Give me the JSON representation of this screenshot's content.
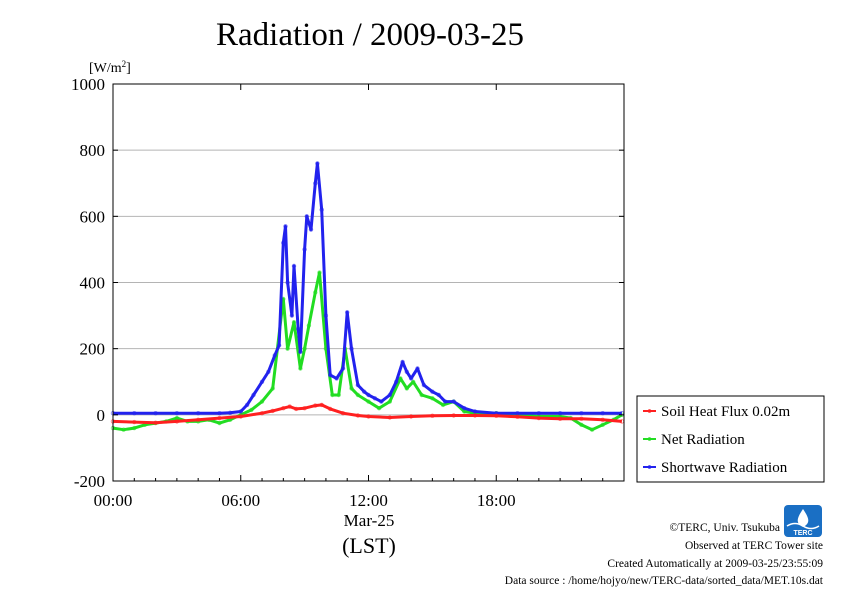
{
  "chart_data": {
    "type": "line",
    "title": "Radiation / 2009-03-25",
    "unit_label_prefix": "[W/m",
    "unit_label_sup": "2",
    "unit_label_suffix": "]",
    "ylim": [
      -200,
      1000
    ],
    "yticks": [
      {
        "value": 1000,
        "label": "1000"
      },
      {
        "value": 800,
        "label": "800"
      },
      {
        "value": 600,
        "label": "600"
      },
      {
        "value": 400,
        "label": "400"
      },
      {
        "value": 200,
        "label": "200"
      },
      {
        "value": 0,
        "label": "0"
      },
      {
        "value": -200,
        "label": "-200"
      }
    ],
    "xlim": [
      0,
      24
    ],
    "xticks": [
      {
        "value": 0,
        "label": "00:00"
      },
      {
        "value": 6,
        "label": "06:00"
      },
      {
        "value": 12,
        "label": "12:00"
      },
      {
        "value": 18,
        "label": "18:00"
      }
    ],
    "date_label": "Mar-25",
    "xlabel": "(LST)",
    "grid": true,
    "legend_position": "right",
    "series": [
      {
        "name": "Soil Heat Flux 0.02m",
        "color": "#ff2020",
        "x": [
          0,
          1,
          2,
          3,
          4,
          5,
          6,
          7,
          7.5,
          8,
          8.3,
          8.6,
          9,
          9.5,
          9.8,
          10.2,
          10.8,
          11.5,
          12,
          13,
          14,
          15,
          16,
          17,
          18,
          19,
          20,
          21,
          22,
          23,
          23.9
        ],
        "values": [
          -20,
          -22,
          -24,
          -20,
          -15,
          -10,
          -5,
          5,
          12,
          20,
          25,
          18,
          20,
          28,
          30,
          18,
          5,
          -2,
          -5,
          -8,
          -5,
          -3,
          -2,
          -2,
          -3,
          -6,
          -10,
          -12,
          -12,
          -15,
          -20
        ]
      },
      {
        "name": "Net Radiation",
        "color": "#22dd22",
        "x": [
          0,
          0.5,
          1,
          1.5,
          2,
          2.5,
          3,
          3.5,
          4,
          4.5,
          5,
          5.5,
          6,
          6.5,
          7,
          7.5,
          8,
          8.2,
          8.5,
          8.8,
          9,
          9.2,
          9.5,
          9.7,
          10,
          10.3,
          10.6,
          10.9,
          11.2,
          11.5,
          12,
          12.5,
          13,
          13.5,
          13.8,
          14.1,
          14.5,
          15,
          15.5,
          16,
          16.5,
          17,
          18,
          19,
          20,
          21,
          21.5,
          22,
          22.5,
          23,
          23.5,
          23.9
        ],
        "values": [
          -40,
          -45,
          -40,
          -30,
          -25,
          -20,
          -10,
          -20,
          -20,
          -15,
          -25,
          -15,
          0,
          15,
          40,
          80,
          350,
          200,
          280,
          140,
          200,
          270,
          370,
          430,
          200,
          60,
          60,
          200,
          80,
          60,
          40,
          20,
          40,
          110,
          80,
          100,
          60,
          50,
          30,
          40,
          10,
          5,
          5,
          0,
          -5,
          -5,
          -10,
          -30,
          -45,
          -30,
          -15,
          0
        ]
      },
      {
        "name": "Shortwave Radiation",
        "color": "#2222ee",
        "x": [
          0,
          1,
          2,
          3,
          4,
          5,
          5.5,
          6,
          6.3,
          6.6,
          7,
          7.3,
          7.6,
          7.8,
          8,
          8.1,
          8.2,
          8.4,
          8.5,
          8.7,
          8.8,
          9,
          9.1,
          9.3,
          9.5,
          9.6,
          9.8,
          10,
          10.2,
          10.5,
          10.8,
          11,
          11.2,
          11.5,
          11.8,
          12,
          12.3,
          12.6,
          13,
          13.3,
          13.6,
          13.8,
          14,
          14.3,
          14.6,
          15,
          15.3,
          15.6,
          16,
          16.5,
          17,
          18,
          19,
          20,
          21,
          22,
          23,
          23.9
        ],
        "values": [
          5,
          5,
          5,
          5,
          5,
          5,
          6,
          10,
          30,
          60,
          100,
          130,
          180,
          210,
          520,
          570,
          400,
          300,
          450,
          260,
          190,
          500,
          600,
          560,
          700,
          760,
          620,
          300,
          120,
          110,
          140,
          310,
          200,
          90,
          70,
          60,
          50,
          40,
          60,
          100,
          160,
          130,
          110,
          140,
          90,
          70,
          60,
          40,
          40,
          20,
          10,
          5,
          5,
          5,
          5,
          5,
          5,
          5
        ]
      }
    ]
  },
  "credits": {
    "copyright": "©TERC, Univ. Tsukuba",
    "observed": "Observed at TERC Tower site",
    "created": "Created Automatically at 2009-03-25/23:55:09",
    "source": "Data source : /home/hojyo/new/TERC-data/sorted_data/MET.10s.dat",
    "logo_text": "TERC"
  }
}
